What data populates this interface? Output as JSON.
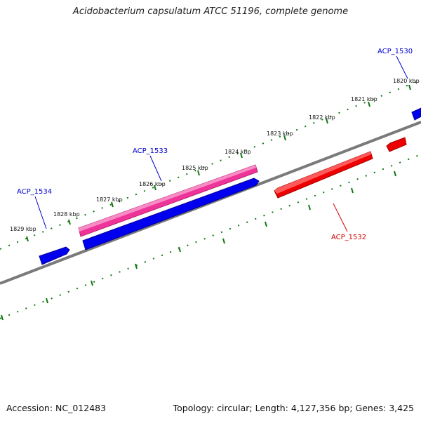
{
  "title": "Acidobacterium capsulatum ATCC 51196, complete genome",
  "footer": {
    "accession": "Accession: NC_012483",
    "stats": "Topology: circular; Length: 4,127,356 bp; Genes: 3,425"
  },
  "ticks": [
    "1820 kbp",
    "1821 kbp",
    "1822 kbp",
    "1823 kbp",
    "1824 kbp",
    "1825 kbp",
    "1826 kbp",
    "1827 kbp",
    "1828 kbp",
    "1829 kbp"
  ],
  "gene_labels": [
    {
      "text": "ACP_1530",
      "color": "#0000cc"
    },
    {
      "text": "ACP_1533",
      "color": "#0000cc"
    },
    {
      "text": "ACP_1534",
      "color": "#0000cc"
    },
    {
      "text": "ACP_1532",
      "color": "#cc0000"
    }
  ],
  "colors": {
    "forward_gene": "#0000ee",
    "reverse_gene": "#ee0000",
    "rna_gene": "#ee3399",
    "backbone": "#888888",
    "ticks": "#117711"
  }
}
